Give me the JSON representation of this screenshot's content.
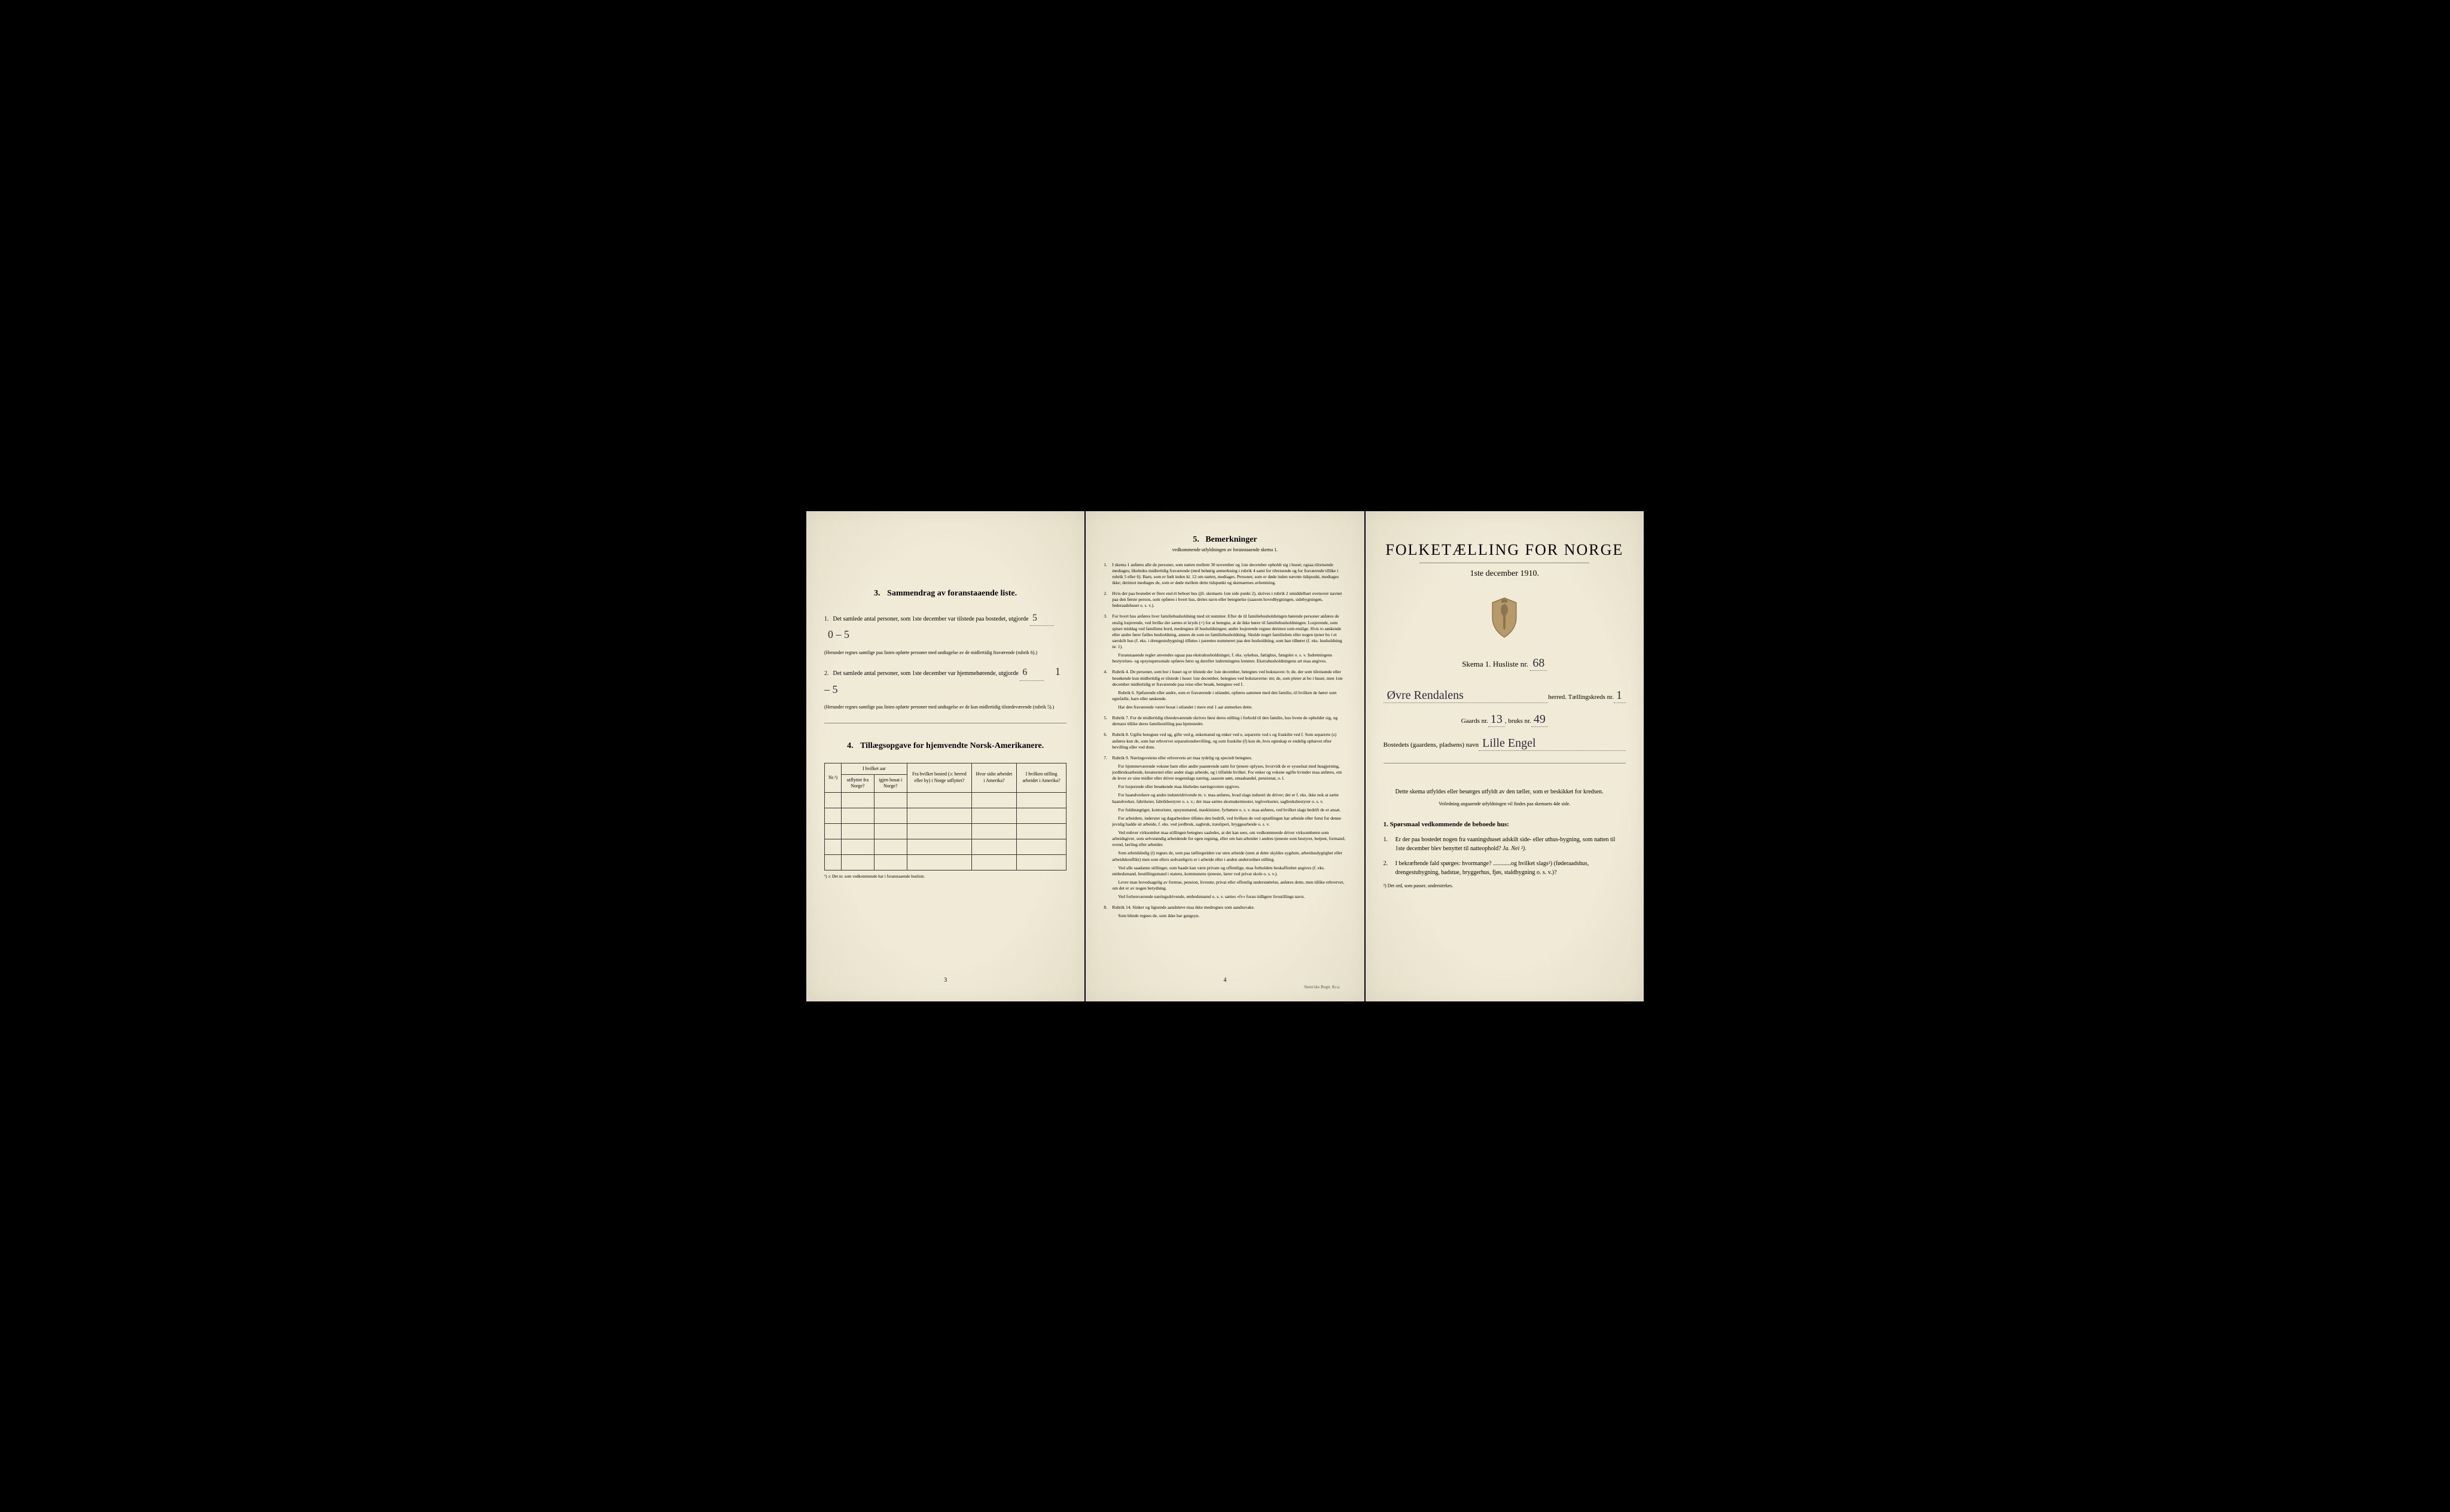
{
  "colors": {
    "paper": "#f0ead6",
    "ink": "#1a1a1a",
    "handwriting": "#2a2a3a",
    "border": "#333"
  },
  "page1": {
    "section3": {
      "num": "3.",
      "title": "Sammendrag av foranstaaende liste.",
      "line1_label": "Det samlede antal personer, som 1ste december var tilstede paa bostedet, utgjorde",
      "line1_num": "1.",
      "line1_value": "5",
      "line1_crossed": "0 – 5",
      "line1_note": "(Herunder regnes samtlige paa listen opførte personer med undtagelse av de midlertidig fraværende (rubrik 6).)",
      "line2_label": "Det samlede antal personer, som 1ste december var hjemmehørende, utgjorde",
      "line2_num": "2.",
      "line2_value": "6",
      "line2_crossed": "1 – 5",
      "line2_note": "(Herunder regnes samtlige paa listen opførte personer med undtagelse av de kun midlertidig tilstedeværende (rubrik 5).)"
    },
    "section4": {
      "num": "4.",
      "title": "Tillægsopgave for hjemvendte Norsk-Amerikanere.",
      "table": {
        "col_nr": "Nr.¹)",
        "col_group": "I hvilket aar",
        "col_utflyttet": "utflyttet fra Norge?",
        "col_igjen": "igjen bosat i Norge?",
        "col_bosted": "Fra hvilket bosted (ɔ: herred eller by) i Norge utflyttet?",
        "col_sidst": "Hvor sidst arbeidet i Amerika?",
        "col_stilling": "I hvilken stilling arbeidet i Amerika?",
        "footnote": "¹) ɔ: Det nr. som vedkommende har i foranstaaende husliste.",
        "empty_rows": 5
      }
    },
    "page_num": "3"
  },
  "page2": {
    "heading_num": "5.",
    "heading": "Bemerkninger",
    "subheading": "vedkommende utfyldningen av foranstaaende skema 1.",
    "rules": [
      {
        "num": "1.",
        "text": "I skema 1 anføres alle de personer, som natten mellem 30 november og 1ste december opholdt sig i huset; ogsaa tilreisende medtages; likeledes midlertidig fraværende (med behørig anmerkning i rubrik 4 samt for tilreisende og for fraværende tillike i rubrik 5 eller 6). Barn, som er født inden kl. 12 om natten, medtages. Personer, som er døde inden nævnte tidspunkt, medtages ikke; derimot medtages de, som er døde mellem dette tidspunkt og skemaernes avhentning."
      },
      {
        "num": "2.",
        "text": "Hvis der paa bostedet er flere end ét beboet hus (jfr. skemaets 1ste side punkt 2), skrives i rubrik 2 umiddelbart ovenover navnet paa den første person, som opføres i hvert hus, dettes navn eller betegnelse (saasom hovedbygningen, sidebygningen, føderaadshuset o. s. v.)."
      },
      {
        "num": "3.",
        "text": "For hvert hus anføres hver familiehusholdning med sit nummer. Efter de til familiehusholdningen hørende personer anføres de enslig losjerende, ved hvilke der sættes et kryds (×) for at betegne, at de ikke hører til familiehusholdningen. Losjerende, som spiser middag ved familiens bord, medregnes til husholdningen; andre losjerende regnes derimot som enslige. Hvis to søskende eller andre fører fælles husholdning, ansees de som en familiehusholdning. Skulde noget familielem eller nogen tjener bo i et særskilt hus (f. eks. i drengestubygning) tilføies i parentes nummeret paa den husholdning, som han tilhører (f. eks. husholdning nr. 1).",
        "paras": [
          "Foranstaaende regler anvendes ogsaa paa ekstrahusholdninger, f. eks. sykehus, fattighus, fængsler o. s. v. Indretningens bestyrelses- og opsynspersonale opføres først og derefter indretningens lemmer. Ekstrahusholdningens art maa angives."
        ]
      },
      {
        "num": "4.",
        "text": "Rubrik 4. De personer, som bor i huset og er tilstede der 1ste december, betegnes ved bokstaven: b; de, der som tilreisende eller besøkende kun midlertidig er tilstede i huset 1ste december, betegnes ved bokstaverne: mt; de, som pleier at bo i huset, men 1ste december midlertidig er fraværende paa reise eller besøk, betegnes ved f.",
        "paras": [
          "Rubrik 6. Sjøfarende eller andre, som er fraværende i utlandet, opføres sammen med den familie, til hvilken de hører som egtefælle, barn eller søskende.",
          "Har den fraværende været bosat i utlandet i mere end 1 aar anmerkes dette."
        ]
      },
      {
        "num": "5.",
        "text": "Rubrik 7. For de midlertidig tilstedeværende skrives først deres stilling i forhold til den familie, hos hvem de opholder sig, og dernæst tillike deres familiestilling paa hjemstedet."
      },
      {
        "num": "6.",
        "text": "Rubrik 8. Ugifte betegnes ved ug, gifte ved g, enkemænd og enker ved e, separerte ved s og fraskilte ved f. Som separerte (s) anføres kun de, som har erhvervet separationsbevilling, og som fraskilte (f) kun de, hvis egteskap er endelig ophævet efter bevilling eller ved dom."
      },
      {
        "num": "7.",
        "text": "Rubrik 9. Næringsveiens eller erhvervets art maa tydelig og specielt betegnes.",
        "paras": [
          "For hjemmeværende voksne barn eller andre paarørende samt for tjenere oplyses, hvorvidt de er sysselsat med husgjerning, jordbruksarbeide, kreaturstel eller andet slags arbeide, og i tilfælde hvilket. For enker og voksne ugifte kvinder maa anføres, om de lever av sine midler eller driver nogenslags næring, saasom søm, smaahandel, pensionat, o. l.",
          "For losjerende eller besøkende maa likeledes næringsveien opgives.",
          "For haandverkere og andre industridrivende m. v. maa anføres, hvad slags industri de driver; det er f. eks. ikke nok at sætte haandverker, fabrikeier, fabrikbestyrer o. s. v.; der maa sættes skomakermester, teglverkseier, sagbruksbestyrer o. s. v.",
          "For fuldmægtiger, kontorister, opsynsmænd, maskinister, fyrbøtere o. s. v. maa anføres, ved hvilket slags bedrift de er ansat.",
          "For arbeidere, inderster og dagarbeidere tilføies den bedrift, ved hvilken de ved op­tællingen har arbeide eller forut for denne jevnlig hadde sit arbeide, f. eks. ved jordbruk, sagbruk, træsliperi, bryggearbeide o. s. v.",
          "Ved enhver virksomhet maa stillingen betegnes saaledes, at det kan sees, om vedkommende driver virksomheten som arbeidsgiver, som selvstændig arbeidende for egen regning, eller om han arbeider i andres tjeneste som bestyrer, betjent, formand, svend, lærling eller arbeider.",
          "Som arbeidsledig (l) regnes de, som paa tællingstiden var uten arbeide (uten at dette skyldes sygdom, arbeidsudygtighet eller arbeidskonflikt) men som ellers sedvanligvis er i arbeide eller i anden underordnet stilling.",
          "Ved alle saadanne stillinger, som baade kan være private og offentlige, maa forholdets beskaffenhet angives (f. eks. embedsmand, bestillingsmand i statens, kommunens tjeneste, lærer ved privat skole o. s. v.).",
          "Lever man hovedsagelig av formue, pension, livrente, privat eller offentlig understøttelse, anføres dette, men tillike erhvervet, om det er av nogen betydning.",
          "Ved forhenværende næringsdrivende, embedsmænd o. s. v. sættes «fv» foran tidligere livsstillings navn."
        ]
      },
      {
        "num": "8.",
        "text": "Rubrik 14. Sinker og lignende aandsløve maa ikke medregnes som aandssvake.",
        "paras": [
          "Som blinde regnes de, som ikke har gangsyn."
        ]
      }
    ],
    "page_num": "4",
    "printer": "Steen'ske Bogtr. Kr.a."
  },
  "page3": {
    "title": "FOLKETÆLLING FOR NORGE",
    "date": "1ste december 1910.",
    "schema_label": "Skema 1.  Husliste nr.",
    "husliste_nr": "68",
    "herred_handwritten": "Øvre Rendalens",
    "herred_suffix": "herred.  Tællingskreds nr.",
    "kreds_nr": "1",
    "gaard_label": "Gaards nr.",
    "gaard_nr": "13",
    "bruks_label": "bruks nr.",
    "bruks_nr": "49",
    "bosted_label": "Bostedets (gaardens, pladsens) navn",
    "bosted_name": "Lille Engel",
    "instruction": "Dette skema utfyldes eller besørges utfyldt av den tæller, som er beskikket for kredsen.",
    "instruction_sub": "Veiledning angaaende utfyldningen vil findes paa skemaets 4de side.",
    "spormaal_heading": "1. Spørsmaal vedkommende de beboede hus:",
    "questions": [
      {
        "num": "1.",
        "text": "Er der paa bostedet nogen fra vaaningshuset adskilt side- eller uthus-bygning, som natten til 1ste december blev benyttet til natteophold?",
        "janei": "Ja.  Nei ²)."
      },
      {
        "num": "2.",
        "text": "I bekræftende fald spørges: hvormange? ............og hvilket slags¹) (føderaadshus, drengestubygning, badstue, bryggerhus, fjøs, stald­bygning o. s. v.)?"
      }
    ],
    "footnote": "²) Det ord, som passer, understrekes."
  }
}
